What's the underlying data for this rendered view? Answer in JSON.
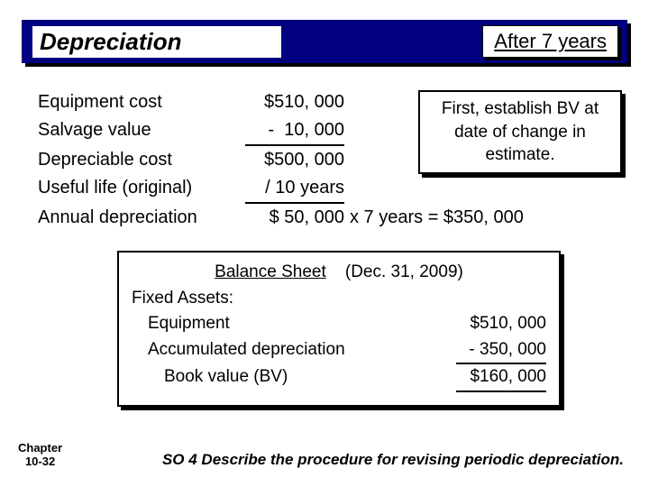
{
  "header": {
    "left": "Depreciation",
    "right": "After 7 years"
  },
  "calc": {
    "rows": [
      {
        "label": "Equipment cost",
        "value": "$510, 000"
      },
      {
        "label": "Salvage value",
        "value": "-  10, 000"
      },
      {
        "label": "Depreciable cost",
        "value": "$500, 000"
      },
      {
        "label": "Useful life (original)",
        "value": "/ 10 years"
      },
      {
        "label": "Annual depreciation",
        "value": "$ 50, 000"
      }
    ],
    "extra": "x  7 years  =  $350, 000"
  },
  "note": "First, establish BV at date of change in estimate.",
  "bs": {
    "title": "Balance Sheet",
    "date": "(Dec. 31, 2009)",
    "sub": "Fixed Assets:",
    "lines": [
      {
        "label": "Equipment",
        "value": "$510, 000"
      },
      {
        "label": "Accumulated depreciation",
        "value": "- 350, 000"
      },
      {
        "label": "Book value (BV)",
        "value": "$160, 000"
      }
    ]
  },
  "footer": "SO 4   Describe the procedure for revising periodic depreciation.",
  "chapter": {
    "l1": "Chapter",
    "l2": "10-32"
  }
}
